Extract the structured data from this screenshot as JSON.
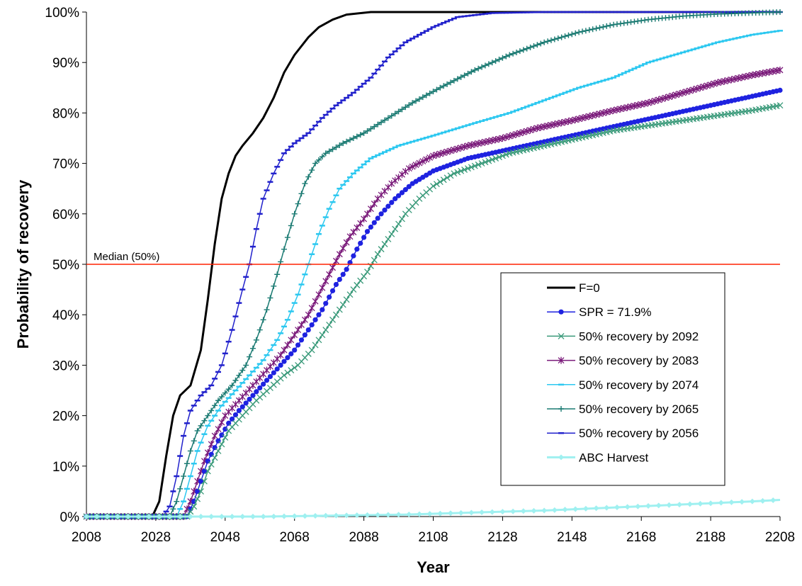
{
  "chart_data": {
    "type": "line",
    "xlabel": "Year",
    "ylabel": "Probability of recovery",
    "xlim": [
      2008,
      2208
    ],
    "ylim": [
      0,
      100
    ],
    "x_ticks": [
      2008,
      2028,
      2048,
      2068,
      2088,
      2108,
      2128,
      2148,
      2168,
      2188,
      2208
    ],
    "x_tick_labels": [
      "2008",
      "2028",
      "2048",
      "2068",
      "2088",
      "2108",
      "2128",
      "2148",
      "2168",
      "2188",
      "2208"
    ],
    "y_ticks": [
      0,
      10,
      20,
      30,
      40,
      50,
      60,
      70,
      80,
      90,
      100
    ],
    "y_tick_labels": [
      "0%",
      "10%",
      "20%",
      "30%",
      "40%",
      "50%",
      "60%",
      "70%",
      "80%",
      "90%",
      "100%"
    ],
    "grid": false,
    "legend_position": "right-center",
    "reference_line": {
      "y": 50,
      "label": "Median (50%)",
      "color": "#ff2200"
    },
    "series": [
      {
        "name": "F=0",
        "color": "#000000",
        "marker": "none",
        "width": 3,
        "points": [
          [
            2008,
            0
          ],
          [
            2027,
            0
          ],
          [
            2029,
            3
          ],
          [
            2031,
            12
          ],
          [
            2033,
            20
          ],
          [
            2035,
            24
          ],
          [
            2038,
            26
          ],
          [
            2041,
            33
          ],
          [
            2043,
            43
          ],
          [
            2045,
            54
          ],
          [
            2047,
            63
          ],
          [
            2049,
            68
          ],
          [
            2051,
            71.5
          ],
          [
            2053,
            73.5
          ],
          [
            2056,
            76
          ],
          [
            2059,
            79
          ],
          [
            2062,
            83
          ],
          [
            2065,
            88
          ],
          [
            2068,
            91.5
          ],
          [
            2072,
            95
          ],
          [
            2075,
            97
          ],
          [
            2079,
            98.5
          ],
          [
            2083,
            99.5
          ],
          [
            2090,
            100
          ],
          [
            2208,
            100
          ]
        ]
      },
      {
        "name": "50% recovery by 2056",
        "color": "#2222cc",
        "marker": "dash",
        "width": 1.5,
        "points": [
          [
            2008,
            0
          ],
          [
            2030,
            0
          ],
          [
            2032,
            2
          ],
          [
            2034,
            8
          ],
          [
            2036,
            16
          ],
          [
            2038,
            21
          ],
          [
            2041,
            24
          ],
          [
            2044,
            26
          ],
          [
            2047,
            30
          ],
          [
            2050,
            37
          ],
          [
            2053,
            45
          ],
          [
            2055,
            50
          ],
          [
            2057,
            57
          ],
          [
            2059,
            63
          ],
          [
            2062,
            68
          ],
          [
            2065,
            72
          ],
          [
            2068,
            74
          ],
          [
            2072,
            76
          ],
          [
            2076,
            79
          ],
          [
            2080,
            81.5
          ],
          [
            2085,
            84
          ],
          [
            2090,
            87
          ],
          [
            2095,
            91
          ],
          [
            2100,
            94
          ],
          [
            2108,
            97
          ],
          [
            2115,
            99
          ],
          [
            2125,
            99.8
          ],
          [
            2140,
            100
          ],
          [
            2208,
            100
          ]
        ]
      },
      {
        "name": "50% recovery by 2065",
        "color": "#1a7a72",
        "marker": "plus",
        "width": 1.5,
        "points": [
          [
            2008,
            0
          ],
          [
            2032,
            0
          ],
          [
            2034,
            3
          ],
          [
            2036,
            8
          ],
          [
            2038,
            13
          ],
          [
            2040,
            17
          ],
          [
            2043,
            20
          ],
          [
            2046,
            23
          ],
          [
            2050,
            26
          ],
          [
            2054,
            30
          ],
          [
            2057,
            35
          ],
          [
            2060,
            41
          ],
          [
            2063,
            48
          ],
          [
            2065,
            53
          ],
          [
            2068,
            60
          ],
          [
            2071,
            66
          ],
          [
            2074,
            70
          ],
          [
            2077,
            72
          ],
          [
            2082,
            74
          ],
          [
            2088,
            76
          ],
          [
            2095,
            79
          ],
          [
            2102,
            82
          ],
          [
            2110,
            85
          ],
          [
            2120,
            88.5
          ],
          [
            2130,
            91.5
          ],
          [
            2140,
            94
          ],
          [
            2150,
            96
          ],
          [
            2160,
            97.5
          ],
          [
            2170,
            98.5
          ],
          [
            2180,
            99.2
          ],
          [
            2190,
            99.6
          ],
          [
            2208,
            100
          ]
        ]
      },
      {
        "name": "50% recovery by 2074",
        "color": "#2cc8f0",
        "marker": "dash",
        "width": 1.5,
        "points": [
          [
            2008,
            0
          ],
          [
            2034,
            0
          ],
          [
            2036,
            3
          ],
          [
            2038,
            8
          ],
          [
            2040,
            13
          ],
          [
            2043,
            18
          ],
          [
            2047,
            22
          ],
          [
            2051,
            25
          ],
          [
            2055,
            28
          ],
          [
            2059,
            31
          ],
          [
            2063,
            35
          ],
          [
            2066,
            39
          ],
          [
            2069,
            44
          ],
          [
            2072,
            50
          ],
          [
            2075,
            56
          ],
          [
            2078,
            61
          ],
          [
            2081,
            65
          ],
          [
            2085,
            68
          ],
          [
            2090,
            71
          ],
          [
            2098,
            73.5
          ],
          [
            2108,
            75.5
          ],
          [
            2120,
            78
          ],
          [
            2130,
            80
          ],
          [
            2140,
            82.5
          ],
          [
            2150,
            85
          ],
          [
            2160,
            87
          ],
          [
            2170,
            90
          ],
          [
            2180,
            92
          ],
          [
            2190,
            94
          ],
          [
            2200,
            95.5
          ],
          [
            2208,
            96.3
          ]
        ]
      },
      {
        "name": "50% recovery by 2083",
        "color": "#7a1a7a",
        "marker": "asterisk",
        "width": 1.5,
        "points": [
          [
            2008,
            0
          ],
          [
            2036,
            0
          ],
          [
            2038,
            3
          ],
          [
            2040,
            7
          ],
          [
            2042,
            11
          ],
          [
            2045,
            16
          ],
          [
            2048,
            20
          ],
          [
            2052,
            23
          ],
          [
            2056,
            26
          ],
          [
            2060,
            29
          ],
          [
            2064,
            32
          ],
          [
            2068,
            36
          ],
          [
            2072,
            40
          ],
          [
            2075,
            44
          ],
          [
            2078,
            48
          ],
          [
            2081,
            52
          ],
          [
            2084,
            55.5
          ],
          [
            2088,
            59
          ],
          [
            2092,
            63
          ],
          [
            2096,
            66
          ],
          [
            2101,
            69
          ],
          [
            2108,
            71.5
          ],
          [
            2118,
            73.5
          ],
          [
            2128,
            75
          ],
          [
            2138,
            77
          ],
          [
            2148,
            78.5
          ],
          [
            2160,
            80.5
          ],
          [
            2170,
            82
          ],
          [
            2180,
            84
          ],
          [
            2190,
            86
          ],
          [
            2200,
            87.5
          ],
          [
            2208,
            88.5
          ]
        ]
      },
      {
        "name": "SPR = 71.9%",
        "color": "#1e22e0",
        "marker": "circle",
        "width": 1.5,
        "points": [
          [
            2008,
            0
          ],
          [
            2037,
            0
          ],
          [
            2039,
            3
          ],
          [
            2041,
            7
          ],
          [
            2043,
            11
          ],
          [
            2046,
            15
          ],
          [
            2049,
            18.5
          ],
          [
            2052,
            21
          ],
          [
            2056,
            24
          ],
          [
            2060,
            27
          ],
          [
            2064,
            30
          ],
          [
            2068,
            33
          ],
          [
            2072,
            37
          ],
          [
            2076,
            41
          ],
          [
            2080,
            46
          ],
          [
            2083,
            49
          ],
          [
            2086,
            53
          ],
          [
            2089,
            56.5
          ],
          [
            2093,
            60
          ],
          [
            2097,
            63
          ],
          [
            2102,
            66
          ],
          [
            2108,
            68.5
          ],
          [
            2118,
            71
          ],
          [
            2128,
            72.5
          ],
          [
            2138,
            74
          ],
          [
            2148,
            75.5
          ],
          [
            2158,
            77
          ],
          [
            2168,
            78.5
          ],
          [
            2178,
            80
          ],
          [
            2188,
            81.5
          ],
          [
            2198,
            83
          ],
          [
            2208,
            84.5
          ]
        ]
      },
      {
        "name": "50% recovery by 2092",
        "color": "#3a9a7a",
        "marker": "cross",
        "width": 1.5,
        "points": [
          [
            2008,
            0
          ],
          [
            2037,
            0
          ],
          [
            2039,
            2
          ],
          [
            2041,
            5
          ],
          [
            2043,
            9
          ],
          [
            2046,
            13
          ],
          [
            2049,
            17
          ],
          [
            2053,
            20
          ],
          [
            2057,
            23
          ],
          [
            2061,
            25.5
          ],
          [
            2065,
            28
          ],
          [
            2069,
            30
          ],
          [
            2073,
            33
          ],
          [
            2077,
            37
          ],
          [
            2081,
            41
          ],
          [
            2085,
            45
          ],
          [
            2089,
            48.5
          ],
          [
            2092,
            52
          ],
          [
            2096,
            56
          ],
          [
            2100,
            60
          ],
          [
            2104,
            63
          ],
          [
            2108,
            65.5
          ],
          [
            2114,
            68
          ],
          [
            2122,
            70
          ],
          [
            2130,
            72
          ],
          [
            2140,
            73.5
          ],
          [
            2150,
            75
          ],
          [
            2160,
            76.5
          ],
          [
            2170,
            77.5
          ],
          [
            2180,
            78.5
          ],
          [
            2190,
            79.5
          ],
          [
            2200,
            80.5
          ],
          [
            2208,
            81.5
          ]
        ]
      },
      {
        "name": "ABC Harvest",
        "color": "#9ff0f0",
        "marker": "diamond",
        "width": 3,
        "points": [
          [
            2008,
            0
          ],
          [
            2060,
            0
          ],
          [
            2080,
            0.2
          ],
          [
            2100,
            0.4
          ],
          [
            2120,
            0.8
          ],
          [
            2140,
            1.2
          ],
          [
            2160,
            1.8
          ],
          [
            2180,
            2.4
          ],
          [
            2200,
            3.0
          ],
          [
            2208,
            3.3
          ]
        ]
      }
    ],
    "legend_order": [
      "F=0",
      "SPR = 71.9%",
      "50% recovery by 2092",
      "50% recovery by 2083",
      "50% recovery by 2074",
      "50% recovery by 2065",
      "50% recovery by 2056",
      "ABC Harvest"
    ]
  }
}
